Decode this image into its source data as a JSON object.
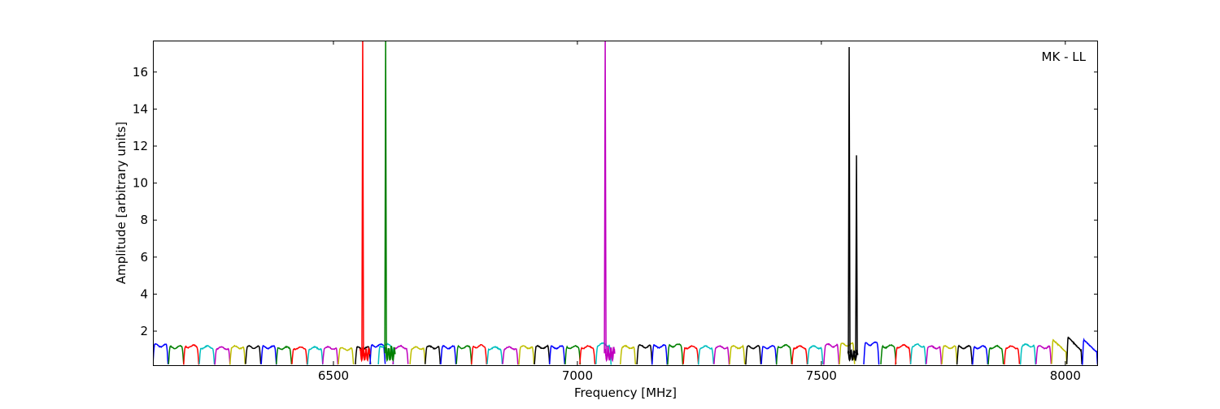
{
  "chart_data": {
    "type": "line",
    "title": "",
    "annotation": "MK - LL",
    "xlabel": "Frequency [MHz]",
    "ylabel": "Amplitude [arbitrary units]",
    "xlim": [
      6130,
      8067
    ],
    "ylim": [
      0.16,
      17.7
    ],
    "xticks": [
      6500,
      7000,
      7500,
      8000
    ],
    "yticks": [
      2,
      4,
      6,
      8,
      10,
      12,
      14,
      16
    ],
    "grid": false,
    "colors": {
      "b": "#0000ff",
      "g": "#008000",
      "r": "#ff0000",
      "c": "#00bfbf",
      "m": "#bf00bf",
      "y": "#bfbf00",
      "k": "#000000"
    },
    "channel_width_MHz": 31,
    "channel_floor": 0.2,
    "channels": [
      {
        "start": 6130,
        "color": "b",
        "level": 1.3
      },
      {
        "start": 6162,
        "color": "g",
        "level": 1.2
      },
      {
        "start": 6193,
        "color": "r",
        "level": 1.25
      },
      {
        "start": 6225,
        "color": "c",
        "level": 1.2
      },
      {
        "start": 6257,
        "color": "m",
        "level": 1.15
      },
      {
        "start": 6288,
        "color": "y",
        "level": 1.2
      },
      {
        "start": 6320,
        "color": "k",
        "level": 1.2
      },
      {
        "start": 6352,
        "color": "b",
        "level": 1.2
      },
      {
        "start": 6383,
        "color": "g",
        "level": 1.15
      },
      {
        "start": 6415,
        "color": "r",
        "level": 1.15
      },
      {
        "start": 6447,
        "color": "c",
        "level": 1.15
      },
      {
        "start": 6478,
        "color": "m",
        "level": 1.15
      },
      {
        "start": 6510,
        "color": "y",
        "level": 1.1
      },
      {
        "start": 6545,
        "color": "k",
        "level": 1.15
      },
      {
        "start": 6575,
        "color": "b",
        "level": 1.3
      },
      {
        "start": 6592,
        "color": "c",
        "level": 1.3
      },
      {
        "start": 6622,
        "color": "m",
        "level": 1.2
      },
      {
        "start": 6657,
        "color": "y",
        "level": 1.15
      },
      {
        "start": 6688,
        "color": "k",
        "level": 1.2
      },
      {
        "start": 6720,
        "color": "b",
        "level": 1.2
      },
      {
        "start": 6752,
        "color": "g",
        "level": 1.2
      },
      {
        "start": 6783,
        "color": "r",
        "level": 1.25
      },
      {
        "start": 6815,
        "color": "c",
        "level": 1.15
      },
      {
        "start": 6847,
        "color": "m",
        "level": 1.15
      },
      {
        "start": 6880,
        "color": "y",
        "level": 1.2
      },
      {
        "start": 6912,
        "color": "k",
        "level": 1.2
      },
      {
        "start": 6943,
        "color": "b",
        "level": 1.2
      },
      {
        "start": 6975,
        "color": "g",
        "level": 1.2
      },
      {
        "start": 7005,
        "color": "r",
        "level": 1.2
      },
      {
        "start": 7038,
        "color": "c",
        "level": 1.35
      },
      {
        "start": 7088,
        "color": "y",
        "level": 1.2
      },
      {
        "start": 7122,
        "color": "k",
        "level": 1.25
      },
      {
        "start": 7153,
        "color": "b",
        "level": 1.25
      },
      {
        "start": 7185,
        "color": "g",
        "level": 1.3
      },
      {
        "start": 7217,
        "color": "r",
        "level": 1.2
      },
      {
        "start": 7248,
        "color": "c",
        "level": 1.2
      },
      {
        "start": 7280,
        "color": "m",
        "level": 1.2
      },
      {
        "start": 7312,
        "color": "y",
        "level": 1.2
      },
      {
        "start": 7345,
        "color": "k",
        "level": 1.2
      },
      {
        "start": 7377,
        "color": "b",
        "level": 1.2
      },
      {
        "start": 7408,
        "color": "g",
        "level": 1.25
      },
      {
        "start": 7440,
        "color": "r",
        "level": 1.2
      },
      {
        "start": 7472,
        "color": "c",
        "level": 1.2
      },
      {
        "start": 7505,
        "color": "m",
        "level": 1.3
      },
      {
        "start": 7537,
        "color": "y",
        "level": 1.35
      },
      {
        "start": 7587,
        "color": "b",
        "level": 1.4
      },
      {
        "start": 7622,
        "color": "g",
        "level": 1.25
      },
      {
        "start": 7652,
        "color": "r",
        "level": 1.25
      },
      {
        "start": 7683,
        "color": "c",
        "level": 1.3
      },
      {
        "start": 7715,
        "color": "m",
        "level": 1.2
      },
      {
        "start": 7747,
        "color": "y",
        "level": 1.2
      },
      {
        "start": 7778,
        "color": "k",
        "level": 1.2
      },
      {
        "start": 7810,
        "color": "b",
        "level": 1.2
      },
      {
        "start": 7842,
        "color": "g",
        "level": 1.2
      },
      {
        "start": 7875,
        "color": "r",
        "level": 1.2
      },
      {
        "start": 7908,
        "color": "c",
        "level": 1.3
      },
      {
        "start": 7940,
        "color": "m",
        "level": 1.2
      },
      {
        "start": 7972,
        "color": "y",
        "level": 1.6,
        "shape": "decay"
      },
      {
        "start": 8003,
        "color": "k",
        "level": 1.75,
        "shape": "decay"
      },
      {
        "start": 8035,
        "color": "b",
        "level": 1.6,
        "shape": "decay"
      }
    ],
    "rfi_channels": [
      {
        "start": 6555,
        "color": "r",
        "level": 1.2
      },
      {
        "start": 6607,
        "color": "g",
        "level": 1.25
      },
      {
        "start": 7057,
        "color": "m",
        "level": 1.2
      },
      {
        "start": 7555,
        "color": "k",
        "level": 1.0
      }
    ],
    "spikes": [
      {
        "freq": 6560,
        "color": "r",
        "value": 18
      },
      {
        "freq": 6607,
        "color": "g",
        "value": 18
      },
      {
        "freq": 7057,
        "color": "m",
        "value": 18
      },
      {
        "freq": 7557,
        "color": "k",
        "value": 17.35
      },
      {
        "freq": 7572,
        "color": "k",
        "value": 11.5
      }
    ]
  }
}
